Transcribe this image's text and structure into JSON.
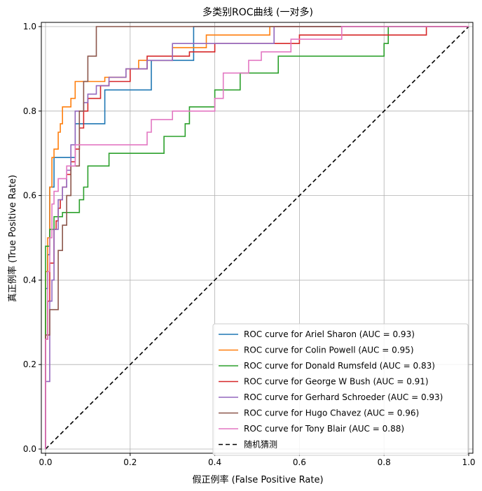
{
  "chart_data": {
    "type": "line",
    "title": "多类别ROC曲线 (一对多)",
    "xlabel": "假正例率 (False Positive Rate)",
    "ylabel": "真正例率 (True Positive Rate)",
    "xlim": [
      0.0,
      1.0
    ],
    "ylim": [
      0.0,
      1.0
    ],
    "xticks": [
      "0.0",
      "0.2",
      "0.4",
      "0.6",
      "0.8",
      "1.0"
    ],
    "yticks": [
      "0.0",
      "0.2",
      "0.4",
      "0.6",
      "0.8",
      "1.0"
    ],
    "grid": true,
    "legend_position": "lower-right",
    "series": [
      {
        "name": "ROC curve for Ariel Sharon (AUC = 0.93)",
        "color": "#1f77b4",
        "x": [
          0.0,
          0.0,
          0.005,
          0.005,
          0.01,
          0.01,
          0.02,
          0.02,
          0.07,
          0.07,
          0.08,
          0.08,
          0.14,
          0.14,
          0.18,
          0.18,
          0.25,
          0.25,
          0.35,
          0.35,
          1.0
        ],
        "y": [
          0.0,
          0.38,
          0.38,
          0.46,
          0.46,
          0.62,
          0.62,
          0.69,
          0.69,
          0.77,
          0.77,
          0.77,
          0.77,
          0.85,
          0.85,
          0.85,
          0.85,
          0.92,
          0.92,
          1.0,
          1.0
        ]
      },
      {
        "name": "ROC curve for Colin Powell (AUC = 0.95)",
        "color": "#ff7f0e",
        "x": [
          0.0,
          0.0,
          0.005,
          0.005,
          0.01,
          0.01,
          0.015,
          0.015,
          0.02,
          0.02,
          0.03,
          0.03,
          0.035,
          0.035,
          0.04,
          0.04,
          0.06,
          0.06,
          0.07,
          0.07,
          0.1,
          0.1,
          0.14,
          0.14,
          0.19,
          0.19,
          0.22,
          0.22,
          0.3,
          0.3,
          0.38,
          0.38,
          0.53,
          0.53,
          1.0
        ],
        "y": [
          0.0,
          0.42,
          0.42,
          0.5,
          0.5,
          0.62,
          0.62,
          0.69,
          0.69,
          0.71,
          0.71,
          0.75,
          0.75,
          0.77,
          0.77,
          0.81,
          0.81,
          0.83,
          0.83,
          0.87,
          0.87,
          0.87,
          0.87,
          0.88,
          0.88,
          0.9,
          0.9,
          0.92,
          0.92,
          0.95,
          0.95,
          0.98,
          0.98,
          1.0,
          1.0
        ]
      },
      {
        "name": "ROC curve for Donald Rumsfeld (AUC = 0.83)",
        "color": "#2ca02c",
        "x": [
          0.0,
          0.0,
          0.01,
          0.01,
          0.02,
          0.02,
          0.04,
          0.04,
          0.06,
          0.06,
          0.08,
          0.08,
          0.09,
          0.09,
          0.1,
          0.1,
          0.15,
          0.15,
          0.28,
          0.28,
          0.33,
          0.33,
          0.34,
          0.34,
          0.4,
          0.4,
          0.46,
          0.46,
          0.55,
          0.55,
          0.8,
          0.8,
          0.81,
          0.81,
          1.0
        ],
        "y": [
          0.0,
          0.48,
          0.48,
          0.52,
          0.52,
          0.55,
          0.55,
          0.56,
          0.56,
          0.56,
          0.56,
          0.59,
          0.59,
          0.62,
          0.62,
          0.67,
          0.67,
          0.7,
          0.7,
          0.74,
          0.74,
          0.77,
          0.77,
          0.81,
          0.81,
          0.85,
          0.85,
          0.89,
          0.89,
          0.93,
          0.93,
          0.96,
          0.96,
          1.0,
          1.0
        ]
      },
      {
        "name": "ROC curve for George W Bush (AUC = 0.91)",
        "color": "#d62728",
        "x": [
          0.0,
          0.0,
          0.005,
          0.005,
          0.01,
          0.01,
          0.02,
          0.02,
          0.025,
          0.025,
          0.03,
          0.03,
          0.035,
          0.035,
          0.04,
          0.04,
          0.05,
          0.05,
          0.06,
          0.06,
          0.07,
          0.07,
          0.08,
          0.08,
          0.09,
          0.09,
          0.1,
          0.1,
          0.13,
          0.13,
          0.15,
          0.15,
          0.2,
          0.2,
          0.24,
          0.24,
          0.34,
          0.34,
          0.4,
          0.4,
          0.6,
          0.6,
          0.9,
          0.9,
          1.0
        ],
        "y": [
          0.0,
          0.26,
          0.26,
          0.35,
          0.35,
          0.44,
          0.44,
          0.52,
          0.52,
          0.54,
          0.54,
          0.57,
          0.57,
          0.59,
          0.59,
          0.62,
          0.62,
          0.65,
          0.65,
          0.68,
          0.68,
          0.71,
          0.71,
          0.76,
          0.76,
          0.8,
          0.8,
          0.83,
          0.83,
          0.86,
          0.86,
          0.87,
          0.87,
          0.9,
          0.9,
          0.93,
          0.93,
          0.94,
          0.94,
          0.96,
          0.96,
          0.98,
          0.98,
          1.0,
          1.0
        ]
      },
      {
        "name": "ROC curve for Gerhard Schroeder (AUC = 0.93)",
        "color": "#9467bd",
        "x": [
          0.0,
          0.0,
          0.01,
          0.01,
          0.015,
          0.015,
          0.02,
          0.02,
          0.03,
          0.03,
          0.04,
          0.04,
          0.05,
          0.05,
          0.06,
          0.06,
          0.07,
          0.07,
          0.09,
          0.09,
          0.1,
          0.1,
          0.12,
          0.12,
          0.15,
          0.15,
          0.19,
          0.19,
          0.24,
          0.24,
          0.3,
          0.3,
          0.34,
          0.34,
          0.54,
          0.54,
          1.0
        ],
        "y": [
          0.0,
          0.16,
          0.16,
          0.35,
          0.35,
          0.4,
          0.4,
          0.52,
          0.52,
          0.59,
          0.59,
          0.62,
          0.62,
          0.66,
          0.66,
          0.72,
          0.72,
          0.8,
          0.8,
          0.82,
          0.82,
          0.84,
          0.84,
          0.86,
          0.86,
          0.88,
          0.88,
          0.9,
          0.9,
          0.92,
          0.92,
          0.96,
          0.96,
          0.96,
          0.96,
          1.0,
          1.0
        ]
      },
      {
        "name": "ROC curve for Hugo Chavez (AUC = 0.96)",
        "color": "#8c564b",
        "x": [
          0.0,
          0.0,
          0.01,
          0.01,
          0.03,
          0.03,
          0.04,
          0.04,
          0.05,
          0.05,
          0.06,
          0.06,
          0.08,
          0.08,
          0.09,
          0.09,
          0.1,
          0.1,
          0.12,
          0.12,
          1.0
        ],
        "y": [
          0.0,
          0.27,
          0.27,
          0.33,
          0.33,
          0.47,
          0.47,
          0.53,
          0.53,
          0.6,
          0.6,
          0.67,
          0.67,
          0.8,
          0.8,
          0.87,
          0.87,
          0.93,
          0.93,
          1.0,
          1.0
        ]
      },
      {
        "name": "ROC curve for Tony Blair (AUC = 0.88)",
        "color": "#e377c2",
        "x": [
          0.0,
          0.0,
          0.005,
          0.005,
          0.01,
          0.01,
          0.015,
          0.015,
          0.02,
          0.02,
          0.03,
          0.03,
          0.05,
          0.05,
          0.07,
          0.07,
          0.24,
          0.24,
          0.25,
          0.25,
          0.3,
          0.3,
          0.4,
          0.4,
          0.42,
          0.42,
          0.48,
          0.48,
          0.51,
          0.51,
          0.58,
          0.58,
          0.7,
          0.7,
          1.0
        ],
        "y": [
          0.0,
          0.26,
          0.26,
          0.42,
          0.42,
          0.5,
          0.5,
          0.58,
          0.58,
          0.61,
          0.61,
          0.64,
          0.64,
          0.67,
          0.67,
          0.72,
          0.72,
          0.75,
          0.75,
          0.78,
          0.78,
          0.8,
          0.8,
          0.83,
          0.83,
          0.89,
          0.89,
          0.92,
          0.92,
          0.94,
          0.94,
          0.97,
          0.97,
          1.0,
          1.0
        ]
      },
      {
        "name": "随机猜测",
        "color": "#000000",
        "dashed": true,
        "x": [
          0.0,
          1.0
        ],
        "y": [
          0.0,
          1.0
        ]
      }
    ]
  }
}
